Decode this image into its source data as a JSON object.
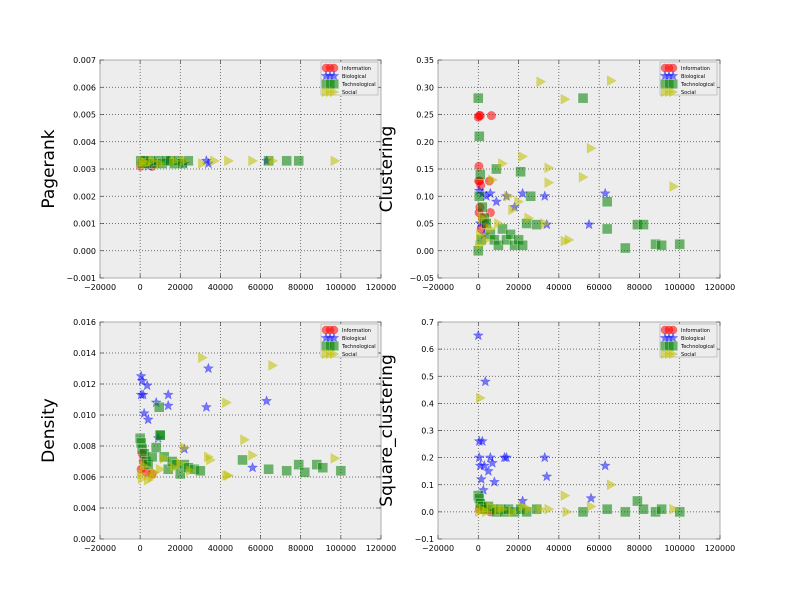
{
  "chart_data": [
    {
      "type": "scatter",
      "ylabel": "Pagerank",
      "xlim": [
        -20000,
        120000
      ],
      "ylim": [
        -0.001,
        0.007
      ],
      "xticks": [
        -20000,
        0,
        20000,
        40000,
        60000,
        80000,
        100000,
        120000
      ],
      "yticks": [
        -0.001,
        0.0,
        0.001,
        0.002,
        0.003,
        0.004,
        0.005,
        0.006,
        0.007
      ],
      "xtick_labels": [
        "−20000",
        "0",
        "20000",
        "40000",
        "60000",
        "80000",
        "100000",
        "120000"
      ],
      "ytick_labels": [
        "−0.001",
        "0.000",
        "0.001",
        "0.002",
        "0.003",
        "0.004",
        "0.005",
        "0.006",
        "0.007"
      ],
      "grid": true,
      "legend": "top-right",
      "series": [
        {
          "name": "Information",
          "marker": "circle",
          "color": "#ff0000",
          "x": [
            200,
            800,
            1500,
            3000,
            6000
          ],
          "y": [
            0.0031,
            0.0033,
            0.0032,
            0.0033,
            0.0031
          ]
        },
        {
          "name": "Biological",
          "marker": "star",
          "color": "#0000ff",
          "x": [
            500,
            2000,
            4000,
            8000,
            14000,
            22000,
            33000,
            34000,
            63000
          ],
          "y": [
            0.0032,
            0.0033,
            0.0031,
            0.0032,
            0.0033,
            0.0032,
            0.0033,
            0.0032,
            0.0033
          ]
        },
        {
          "name": "Technological",
          "marker": "square",
          "color": "#008000",
          "x": [
            300,
            1000,
            2000,
            3000,
            5000,
            7000,
            9000,
            11000,
            13000,
            15000,
            17000,
            19000,
            21000,
            24000,
            64000,
            73000,
            79000
          ],
          "y": [
            0.0033,
            0.0032,
            0.0033,
            0.0032,
            0.0033,
            0.0032,
            0.0033,
            0.0032,
            0.0033,
            0.0033,
            0.0032,
            0.0033,
            0.0032,
            0.0033,
            0.0033,
            0.0033,
            0.0033
          ]
        },
        {
          "name": "Social",
          "marker": "triangle-right",
          "color": "#bfbf00",
          "x": [
            500,
            1500,
            3000,
            6000,
            10000,
            17000,
            22000,
            31000,
            37000,
            44000,
            56000,
            66000,
            97000
          ],
          "y": [
            0.0032,
            0.0033,
            0.0032,
            0.0033,
            0.0032,
            0.0033,
            0.0033,
            0.0032,
            0.0033,
            0.0033,
            0.0033,
            0.0033,
            0.0033
          ]
        }
      ]
    },
    {
      "type": "scatter",
      "ylabel": "Clustering",
      "xlim": [
        -20000,
        120000
      ],
      "ylim": [
        -0.05,
        0.35
      ],
      "xticks": [
        -20000,
        0,
        20000,
        40000,
        60000,
        80000,
        100000,
        120000
      ],
      "yticks": [
        -0.05,
        0.0,
        0.05,
        0.1,
        0.15,
        0.2,
        0.25,
        0.3,
        0.35
      ],
      "xtick_labels": [
        "−20000",
        "0",
        "20000",
        "40000",
        "60000",
        "80000",
        "100000",
        "120000"
      ],
      "ytick_labels": [
        "−0.05",
        "0.00",
        "0.05",
        "0.10",
        "0.15",
        "0.20",
        "0.25",
        "0.30",
        "0.35"
      ],
      "grid": true,
      "legend": "top-right",
      "series": [
        {
          "name": "Information",
          "marker": "circle",
          "color": "#ff0000",
          "x": [
            0,
            500,
            1000,
            6500,
            300,
            700,
            200,
            1200,
            5500,
            6000,
            2000,
            400,
            800,
            3000,
            1500
          ],
          "y": [
            0.245,
            0.248,
            0.248,
            0.248,
            0.155,
            0.128,
            0.128,
            0.12,
            0.128,
            0.07,
            0.06,
            0.07,
            0.08,
            0.05,
            0.04
          ]
        },
        {
          "name": "Biological",
          "marker": "star",
          "color": "#0000ff",
          "x": [
            500,
            2000,
            4000,
            6000,
            9000,
            14000,
            18000,
            22000,
            33000,
            34000,
            55000,
            63000,
            1000,
            3000
          ],
          "y": [
            0.11,
            0.105,
            0.1,
            0.105,
            0.09,
            0.1,
            0.08,
            0.105,
            0.1,
            0.048,
            0.048,
            0.105,
            0.05,
            0.03
          ]
        },
        {
          "name": "Technological",
          "marker": "square",
          "color": "#008000",
          "x": [
            0,
            500,
            1000,
            2000,
            3000,
            4000,
            6000,
            8000,
            10000,
            12000,
            14000,
            16000,
            18000,
            20000,
            22000,
            24000,
            26000,
            29000,
            52000,
            64000,
            64000,
            73000,
            79000,
            82000,
            88000,
            91000,
            100000,
            0,
            500,
            1500,
            9000,
            21000
          ],
          "y": [
            0.28,
            0.21,
            0.14,
            0.08,
            0.06,
            0.05,
            0.03,
            0.02,
            0.01,
            0.04,
            0.02,
            0.03,
            0.01,
            0.02,
            0.01,
            0.05,
            0.1,
            0.048,
            0.28,
            0.09,
            0.04,
            0.005,
            0.048,
            0.048,
            0.012,
            0.01,
            0.012,
            0.0,
            0.1,
            0.02,
            0.15,
            0.145
          ]
        },
        {
          "name": "Social",
          "marker": "triangle-right",
          "color": "#bfbf00",
          "x": [
            31000,
            43000,
            56000,
            66000,
            97000,
            22000,
            12000,
            35000,
            52000,
            35000,
            45000,
            43000,
            17000,
            7000,
            2000,
            1000,
            10000,
            20000,
            500,
            4000,
            6000,
            15000,
            25000,
            33000
          ],
          "y": [
            0.31,
            0.278,
            0.188,
            0.312,
            0.118,
            0.173,
            0.16,
            0.152,
            0.135,
            0.125,
            0.02,
            0.018,
            0.075,
            0.13,
            0.06,
            0.03,
            0.05,
            0.09,
            0.01,
            0.02,
            0.04,
            0.1,
            0.06,
            0.05
          ]
        }
      ]
    },
    {
      "type": "scatter",
      "ylabel": "Density",
      "xlim": [
        -20000,
        120000
      ],
      "ylim": [
        0.002,
        0.016
      ],
      "xticks": [
        -20000,
        0,
        20000,
        40000,
        60000,
        80000,
        100000,
        120000
      ],
      "yticks": [
        0.002,
        0.004,
        0.006,
        0.008,
        0.01,
        0.012,
        0.014,
        0.016
      ],
      "xtick_labels": [
        "−20000",
        "0",
        "20000",
        "40000",
        "60000",
        "80000",
        "100000",
        "120000"
      ],
      "ytick_labels": [
        "0.002",
        "0.004",
        "0.006",
        "0.008",
        "0.010",
        "0.012",
        "0.014",
        "0.016"
      ],
      "grid": true,
      "legend": "top-right",
      "series": [
        {
          "name": "Information",
          "marker": "circle",
          "color": "#ff0000",
          "x": [
            500,
            1500,
            3000,
            6000,
            1000
          ],
          "y": [
            0.0065,
            0.007,
            0.0063,
            0.0062,
            0.0075
          ]
        },
        {
          "name": "Biological",
          "marker": "star",
          "color": "#0000ff",
          "x": [
            500,
            1000,
            3500,
            1500,
            500,
            2000,
            4000,
            14000,
            8000,
            14000,
            33000,
            34000,
            63000,
            9000,
            22000,
            56000
          ],
          "y": [
            0.0125,
            0.0122,
            0.0119,
            0.0113,
            0.0113,
            0.0101,
            0.0097,
            0.0113,
            0.0108,
            0.0106,
            0.0105,
            0.013,
            0.0109,
            0.0085,
            0.0078,
            0.0066
          ]
        },
        {
          "name": "Technological",
          "marker": "square",
          "color": "#008000",
          "x": [
            0,
            500,
            1000,
            2000,
            3000,
            4000,
            6000,
            8000,
            10000,
            12000,
            14000,
            16000,
            18000,
            20000,
            22000,
            24000,
            27000,
            30000,
            51000,
            64000,
            73000,
            79000,
            82000,
            88000,
            91000,
            100000,
            9500,
            10000
          ],
          "y": [
            0.0085,
            0.0082,
            0.0078,
            0.0075,
            0.007,
            0.0068,
            0.0073,
            0.0079,
            0.0087,
            0.0073,
            0.0065,
            0.007,
            0.0068,
            0.0062,
            0.0068,
            0.0066,
            0.0065,
            0.0064,
            0.0071,
            0.0065,
            0.0064,
            0.0068,
            0.0063,
            0.0068,
            0.0066,
            0.0064,
            0.0105,
            0.0087
          ]
        },
        {
          "name": "Social",
          "marker": "triangle-right",
          "color": "#bfbf00",
          "x": [
            31000,
            66000,
            43000,
            52000,
            34000,
            35000,
            43000,
            56000,
            97000,
            22000,
            12000,
            17000,
            7000,
            2000,
            1000,
            500,
            4000,
            6000,
            10000,
            20000,
            25000,
            44000
          ],
          "y": [
            0.0137,
            0.0132,
            0.0108,
            0.0084,
            0.0073,
            0.0071,
            0.0061,
            0.0074,
            0.0072,
            0.0079,
            0.0072,
            0.0066,
            0.0063,
            0.0067,
            0.0059,
            0.0062,
            0.0058,
            0.006,
            0.0065,
            0.0069,
            0.0064,
            0.0061
          ]
        }
      ]
    },
    {
      "type": "scatter",
      "ylabel": "Square_clustering",
      "xlim": [
        -20000,
        120000
      ],
      "ylim": [
        -0.1,
        0.7
      ],
      "xticks": [
        -20000,
        0,
        20000,
        40000,
        60000,
        80000,
        100000,
        120000
      ],
      "yticks": [
        -0.1,
        0.0,
        0.1,
        0.2,
        0.3,
        0.4,
        0.5,
        0.6,
        0.7
      ],
      "xtick_labels": [
        "−20000",
        "0",
        "20000",
        "40000",
        "60000",
        "80000",
        "100000",
        "120000"
      ],
      "ytick_labels": [
        "−0.1",
        "0.0",
        "0.1",
        "0.2",
        "0.3",
        "0.4",
        "0.5",
        "0.6",
        "0.7"
      ],
      "grid": true,
      "legend": "top-right",
      "series": [
        {
          "name": "Information",
          "marker": "circle",
          "color": "#ff0000",
          "x": [
            500,
            1500,
            3000,
            6000
          ],
          "y": [
            0.01,
            0.02,
            0.01,
            0.0
          ]
        },
        {
          "name": "Biological",
          "marker": "star",
          "color": "#0000ff",
          "x": [
            0,
            3500,
            500,
            2000,
            6000,
            500,
            1000,
            3000,
            5000,
            7000,
            1500,
            8000,
            13000,
            14000,
            22000,
            33000,
            34000,
            56000,
            63000,
            2500
          ],
          "y": [
            0.65,
            0.48,
            0.26,
            0.26,
            0.2,
            0.2,
            0.17,
            0.17,
            0.15,
            0.18,
            0.12,
            0.11,
            0.2,
            0.2,
            0.04,
            0.2,
            0.13,
            0.05,
            0.17,
            0.08
          ]
        },
        {
          "name": "Technological",
          "marker": "square",
          "color": "#008000",
          "x": [
            0,
            500,
            1000,
            2000,
            3000,
            5000,
            7000,
            9000,
            11000,
            13000,
            15000,
            18000,
            21000,
            24000,
            29000,
            52000,
            64000,
            73000,
            79000,
            82000,
            88000,
            91000,
            100000
          ],
          "y": [
            0.06,
            0.05,
            0.03,
            0.02,
            0.01,
            0.02,
            0.01,
            0.0,
            0.01,
            0.0,
            0.01,
            0.0,
            0.01,
            0.0,
            0.01,
            0.0,
            0.01,
            0.0,
            0.04,
            0.01,
            0.0,
            0.01,
            0.0
          ]
        },
        {
          "name": "Social",
          "marker": "triangle-right",
          "color": "#bfbf00",
          "x": [
            1000,
            43000,
            66000,
            56000,
            97000,
            35000,
            22000,
            12000,
            500,
            2000,
            4000,
            6000,
            10000,
            17000,
            25000,
            31000,
            44000
          ],
          "y": [
            0.42,
            0.06,
            0.1,
            0.02,
            0.01,
            0.01,
            0.02,
            0.01,
            0.0,
            0.01,
            0.0,
            0.02,
            0.01,
            0.0,
            0.01,
            0.01,
            0.0
          ]
        }
      ]
    }
  ]
}
